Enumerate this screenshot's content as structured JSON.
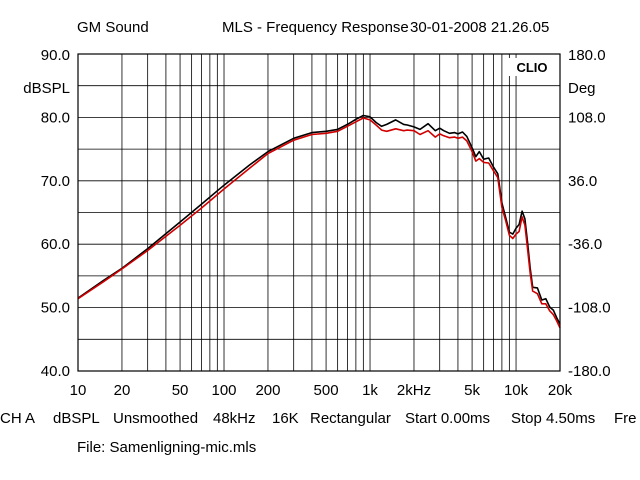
{
  "header": {
    "company": "GM Sound",
    "title": "MLS - Frequency Response",
    "datetime": "30-01-2008 21.26.05"
  },
  "logo": "CLIO",
  "footer": {
    "settings": [
      "CH A",
      "dBSPL",
      "Unsmoothed",
      "48kHz",
      "16K",
      "Rectangular",
      "Start 0.00ms",
      "Stop 4.50ms",
      "Fre"
    ],
    "file": "File: Samenligning-mic.mls"
  },
  "chart_data": {
    "type": "line",
    "title": "MLS - Frequency Response",
    "xscale": "log",
    "xlim": [
      10,
      20000
    ],
    "ylim": [
      40,
      90
    ],
    "y2lim": [
      -180,
      180
    ],
    "ylabel": "dBSPL",
    "y2label": "Deg",
    "grid": true,
    "x_ticks": [
      {
        "value": 10,
        "label": "10"
      },
      {
        "value": 20,
        "label": "20"
      },
      {
        "value": 50,
        "label": "50"
      },
      {
        "value": 100,
        "label": "100"
      },
      {
        "value": 200,
        "label": "200"
      },
      {
        "value": 500,
        "label": "500"
      },
      {
        "value": 1000,
        "label": "1k"
      },
      {
        "value": 2000,
        "label": "2kHz"
      },
      {
        "value": 5000,
        "label": "5k"
      },
      {
        "value": 10000,
        "label": "10k"
      },
      {
        "value": 20000,
        "label": "20k"
      }
    ],
    "y_ticks": [
      {
        "value": 90,
        "label": "90.0"
      },
      {
        "value": 80,
        "label": "80.0"
      },
      {
        "value": 70,
        "label": "70.0"
      },
      {
        "value": 60,
        "label": "60.0"
      },
      {
        "value": 50,
        "label": "50.0"
      },
      {
        "value": 40,
        "label": "40.0"
      }
    ],
    "y2_ticks": [
      {
        "value": 180,
        "label": "180.0"
      },
      {
        "value": 108,
        "label": "108.0"
      },
      {
        "value": 36,
        "label": "36.0"
      },
      {
        "value": -36,
        "label": "-36.0"
      },
      {
        "value": -108,
        "label": "-108.0"
      },
      {
        "value": -180,
        "label": "-180.0"
      }
    ],
    "series": [
      {
        "color": "#000000",
        "x": [
          10,
          15,
          20,
          30,
          50,
          70,
          100,
          150,
          200,
          300,
          400,
          500,
          600,
          700,
          800,
          900,
          1000,
          1100,
          1200,
          1300,
          1500,
          1700,
          1800,
          2000,
          2200,
          2500,
          2800,
          3000,
          3200,
          3500,
          3800,
          4000,
          4300,
          4600,
          5000,
          5300,
          5600,
          6000,
          6500,
          7000,
          7500,
          8000,
          8500,
          9000,
          9500,
          10000,
          10500,
          11000,
          11500,
          12000,
          12500,
          13000,
          14000,
          15000,
          16000,
          17000,
          18000,
          19000,
          20000
        ],
        "y": [
          51.5,
          54.3,
          56.2,
          59.3,
          63.5,
          66.3,
          69.3,
          72.5,
          74.6,
          76.7,
          77.6,
          77.8,
          78.1,
          78.9,
          79.7,
          80.3,
          80.1,
          79.2,
          78.6,
          78.9,
          79.6,
          78.9,
          78.8,
          78.5,
          78.1,
          79.0,
          77.9,
          78.3,
          77.9,
          77.5,
          77.6,
          77.4,
          77.7,
          77.0,
          75.2,
          73.8,
          74.6,
          73.4,
          73.6,
          72.2,
          71.1,
          66.5,
          64.2,
          61.9,
          61.6,
          62.5,
          63.1,
          65.2,
          64.0,
          60.2,
          56.2,
          53.2,
          53.1,
          51.2,
          51.4,
          50.1,
          49.6,
          48.4,
          47.4
        ]
      },
      {
        "color": "#d00000",
        "x": [
          10,
          15,
          20,
          30,
          50,
          70,
          100,
          150,
          200,
          300,
          400,
          500,
          600,
          700,
          800,
          900,
          1000,
          1100,
          1200,
          1300,
          1500,
          1700,
          1800,
          2000,
          2200,
          2500,
          2800,
          3000,
          3200,
          3500,
          3800,
          4000,
          4300,
          4600,
          5000,
          5300,
          5600,
          6000,
          6500,
          7000,
          7500,
          8000,
          8500,
          9000,
          9500,
          10000,
          10500,
          11000,
          11500,
          12000,
          12500,
          13000,
          14000,
          15000,
          16000,
          17000,
          18000,
          19000,
          20000
        ],
        "y": [
          51.4,
          54.1,
          56.1,
          59.0,
          63.0,
          65.7,
          68.7,
          72.0,
          74.3,
          76.4,
          77.3,
          77.5,
          77.8,
          78.6,
          79.3,
          79.9,
          79.6,
          78.8,
          78.0,
          77.8,
          78.2,
          77.9,
          78.0,
          77.9,
          77.3,
          77.9,
          76.9,
          77.4,
          77.1,
          76.8,
          76.9,
          76.7,
          76.9,
          76.3,
          74.6,
          73.1,
          73.5,
          72.9,
          72.8,
          71.6,
          70.5,
          65.8,
          63.7,
          61.4,
          60.9,
          61.6,
          62.0,
          64.3,
          63.0,
          59.2,
          55.4,
          52.6,
          52.2,
          50.6,
          50.6,
          49.5,
          48.9,
          47.9,
          46.8
        ]
      }
    ]
  }
}
